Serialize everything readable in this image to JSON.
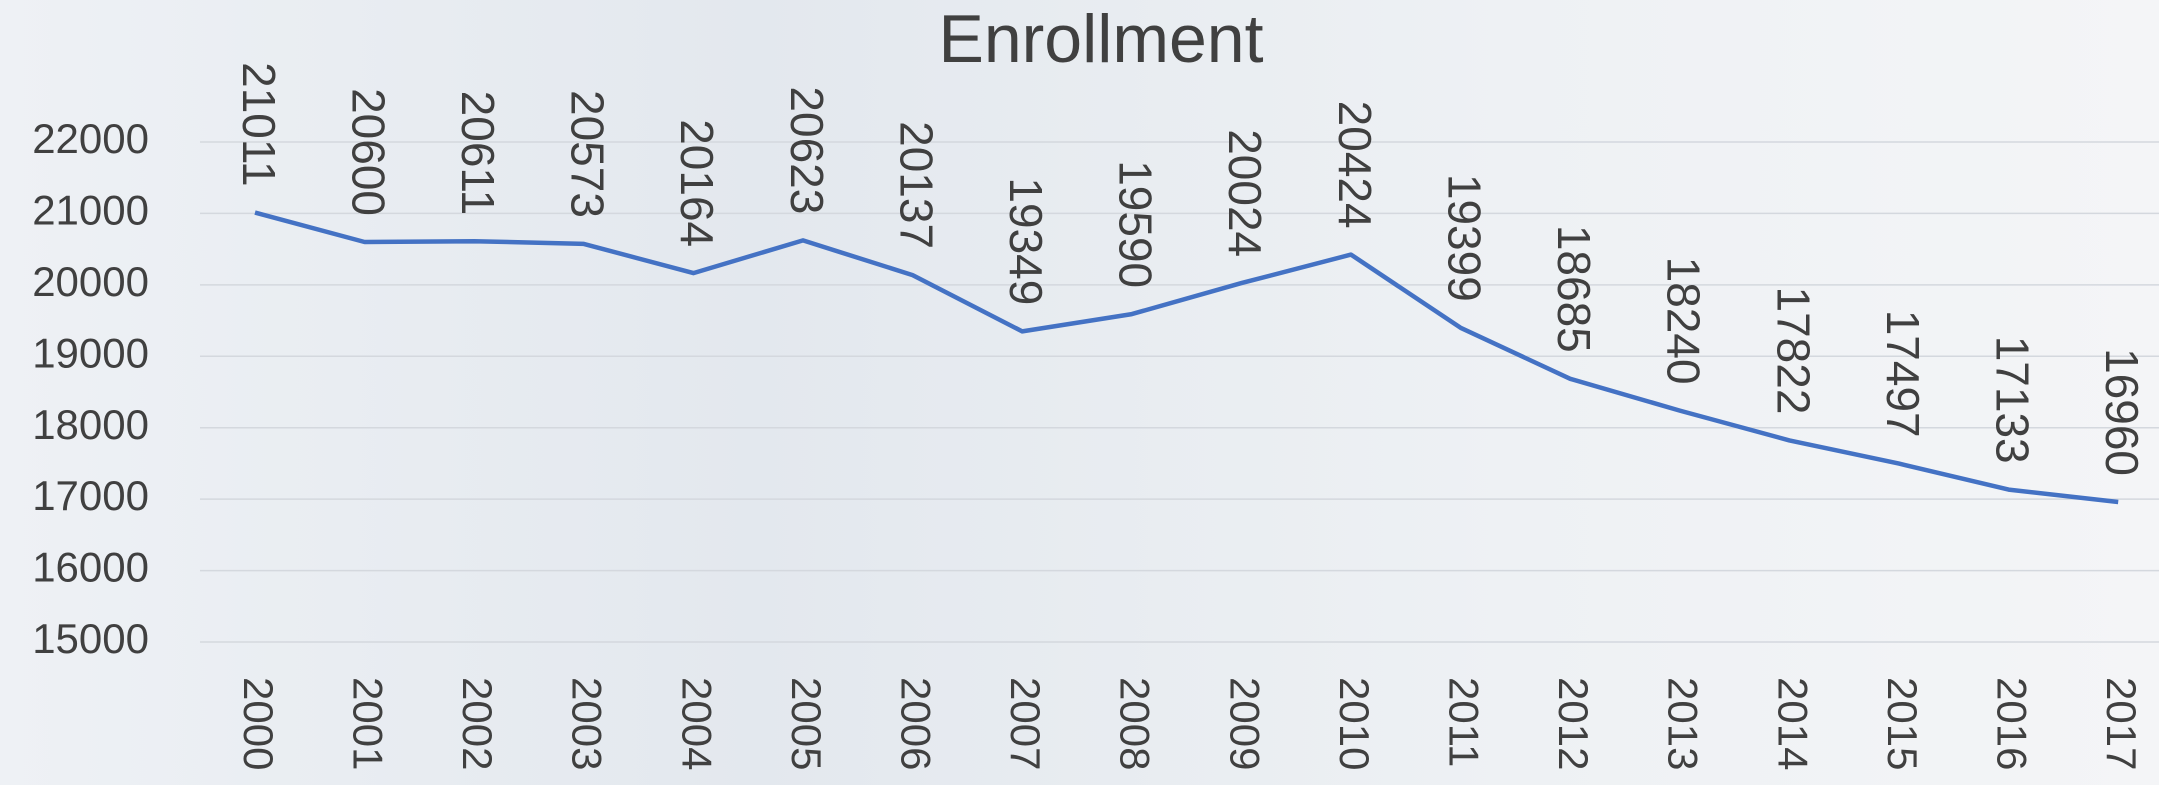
{
  "chart_data": {
    "type": "line",
    "title": "Enrollment",
    "categories": [
      "2000",
      "2001",
      "2002",
      "2003",
      "2004",
      "2005",
      "2006",
      "2007",
      "2008",
      "2009",
      "2010",
      "2011",
      "2012",
      "2013",
      "2014",
      "2015",
      "2016",
      "2017"
    ],
    "values": [
      21011,
      20600,
      20611,
      20573,
      20164,
      20623,
      20137,
      19349,
      19590,
      20024,
      20424,
      19399,
      18685,
      18240,
      17822,
      17497,
      17133,
      16960
    ],
    "color": "#4472c4",
    "ylim": [
      15000,
      22000
    ],
    "yticks": [
      15000,
      16000,
      17000,
      18000,
      19000,
      20000,
      21000,
      22000
    ],
    "grid": true
  }
}
